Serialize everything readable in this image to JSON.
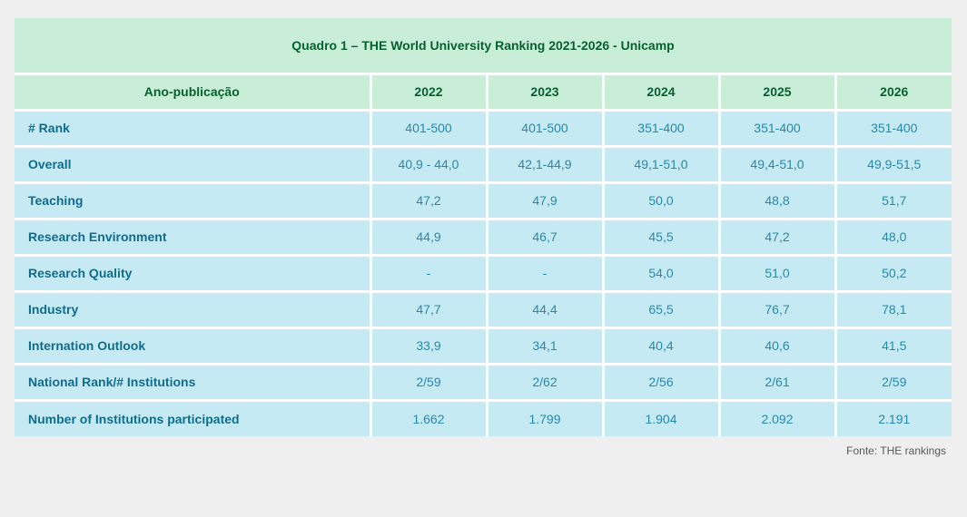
{
  "chart_data": {
    "type": "table",
    "title": "Quadro 1 – THE World University Ranking 2021-2026 - Unicamp",
    "columns": [
      "Ano-publicação",
      "2022",
      "2023",
      "2024",
      "2025",
      "2026"
    ],
    "rows": [
      {
        "label": "# Rank",
        "values": [
          "401-500",
          "401-500",
          "351-400",
          "351-400",
          "351-400"
        ]
      },
      {
        "label": "Overall",
        "values": [
          "40,9 - 44,0",
          "42,1-44,9",
          "49,1-51,0",
          "49,4-51,0",
          "49,9-51,5"
        ]
      },
      {
        "label": "Teaching",
        "values": [
          "47,2",
          "47,9",
          "50,0",
          "48,8",
          "51,7"
        ]
      },
      {
        "label": "Research Environment",
        "values": [
          "44,9",
          "46,7",
          "45,5",
          "47,2",
          "48,0"
        ]
      },
      {
        "label": "Research Quality",
        "values": [
          "-",
          "-",
          "54,0",
          "51,0",
          "50,2"
        ]
      },
      {
        "label": "Industry",
        "values": [
          "47,7",
          "44,4",
          "65,5",
          "76,7",
          "78,1"
        ]
      },
      {
        "label": "Internation Outlook",
        "values": [
          "33,9",
          "34,1",
          "40,4",
          "40,6",
          "41,5"
        ]
      },
      {
        "label": "National Rank/# Institutions",
        "values": [
          "2/59",
          "2/62",
          "2/56",
          "2/61",
          "2/59"
        ]
      },
      {
        "label": "Number of Institutions participated",
        "values": [
          "1.662",
          "1.799",
          "1.904",
          "2.092",
          "2.191"
        ]
      }
    ],
    "source": "Fonte: THE rankings",
    "layout": {
      "header_fill": "#c9eed8",
      "header_text": "#07612f",
      "body_fill": "#c6eaf3",
      "label_text": "#0e6d8e",
      "value_text": "#2589ac",
      "grid_color": "#ffffff",
      "page_background": "#f0eff0"
    }
  }
}
